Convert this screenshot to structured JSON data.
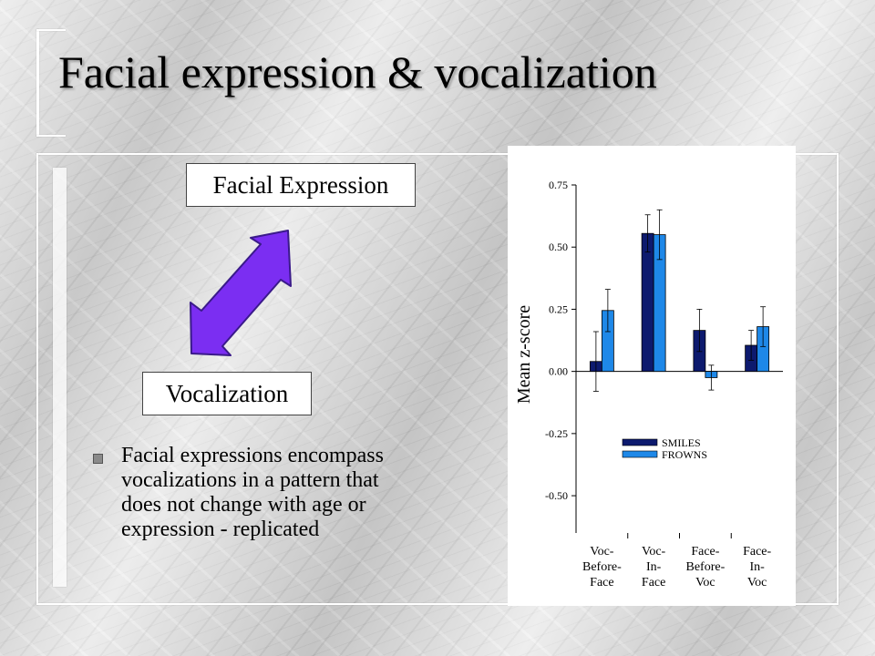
{
  "slide": {
    "title": "Facial expression & vocalization",
    "label_top": "Facial Expression",
    "label_bottom": "Vocalization",
    "bullets": [
      "Facial expressions encompass vocalizations in a pattern that does not change with age or expression - replicated"
    ]
  },
  "colors": {
    "arrow_fill": "#7b2ef2",
    "arrow_stroke": "#3a1a8a",
    "series_dark": "#0d1a6e",
    "series_light": "#1e88e8"
  },
  "icons": {
    "double_arrow": "double-headed-arrow",
    "bullet": "square-bullet"
  },
  "chart_data": {
    "type": "bar",
    "title": "",
    "xlabel": "",
    "ylabel": "Mean z-score",
    "ylim": [
      -0.65,
      0.75
    ],
    "yticks": [
      0.75,
      0.5,
      0.25,
      0.0,
      -0.25,
      -0.5
    ],
    "ytick_labels": [
      "0.75",
      "0.50",
      "0.25",
      "0.00",
      "-0.25",
      "-0.50"
    ],
    "categories": [
      "Voc-Before-Face",
      "Voc-In-Face",
      "Face-Before-Voc",
      "Face-In-Voc"
    ],
    "category_lines": [
      [
        "Voc-",
        "Before-",
        "Face"
      ],
      [
        "Voc-",
        "In-",
        "Face"
      ],
      [
        "Face-",
        "Before-",
        "Voc"
      ],
      [
        "Face-",
        "In-",
        "Voc"
      ]
    ],
    "legend_position": "lower-center",
    "grid": false,
    "series": [
      {
        "name": "SMILES",
        "color": "#0d1a6e",
        "values": [
          0.04,
          0.555,
          0.165,
          0.105
        ],
        "error": [
          0.12,
          0.075,
          0.085,
          0.06
        ]
      },
      {
        "name": "FROWNS",
        "color": "#1e88e8",
        "values": [
          0.245,
          0.55,
          -0.025,
          0.18
        ],
        "error": [
          0.085,
          0.1,
          0.05,
          0.08
        ]
      }
    ]
  }
}
